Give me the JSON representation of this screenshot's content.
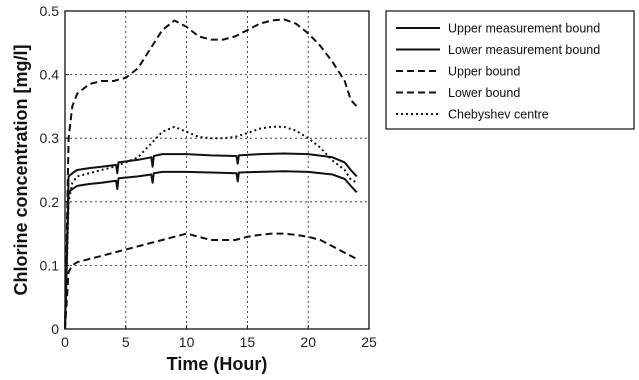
{
  "chart_data": {
    "type": "line",
    "xlabel": "Time   (Hour)",
    "ylabel": "Chlorine concentration [mg/l]",
    "xlim": [
      0,
      25
    ],
    "ylim": [
      0,
      0.5
    ],
    "xticks": [
      "0",
      "5",
      "10",
      "15",
      "20",
      "25"
    ],
    "yticks": [
      "0",
      "0.1",
      "0.2",
      "0.3",
      "0.4",
      "0.5"
    ],
    "grid": true,
    "legend_position": "outside-right",
    "series": [
      {
        "name": "Upper measurement bound",
        "style": "solid",
        "x": [
          0,
          0.3,
          0.6,
          1,
          2,
          3,
          4.2,
          4.3,
          4.4,
          6,
          7.1,
          7.2,
          7.3,
          8,
          10,
          12,
          14.1,
          14.2,
          14.3,
          16,
          18,
          20,
          22,
          23,
          23.5,
          24
        ],
        "y": [
          0,
          0.24,
          0.245,
          0.25,
          0.253,
          0.255,
          0.258,
          0.245,
          0.262,
          0.266,
          0.27,
          0.255,
          0.272,
          0.275,
          0.275,
          0.273,
          0.272,
          0.26,
          0.273,
          0.275,
          0.276,
          0.275,
          0.27,
          0.262,
          0.25,
          0.24
        ]
      },
      {
        "name": "Lower measurement bound",
        "style": "solid",
        "x": [
          0,
          0.3,
          0.6,
          1,
          2,
          3,
          4.2,
          4.3,
          4.4,
          6,
          7.1,
          7.2,
          7.3,
          8,
          10,
          12,
          14.1,
          14.2,
          14.3,
          16,
          18,
          20,
          22,
          23,
          23.5,
          24
        ],
        "y": [
          0,
          0.215,
          0.22,
          0.225,
          0.228,
          0.23,
          0.233,
          0.22,
          0.237,
          0.24,
          0.243,
          0.23,
          0.245,
          0.247,
          0.247,
          0.246,
          0.245,
          0.232,
          0.246,
          0.247,
          0.248,
          0.247,
          0.243,
          0.236,
          0.225,
          0.215
        ]
      },
      {
        "name": "Upper bound",
        "style": "dashed",
        "x": [
          0,
          0.3,
          0.6,
          1,
          2,
          3,
          4,
          5,
          6,
          7,
          8,
          9,
          10,
          11,
          12,
          13,
          14,
          15,
          16,
          17,
          18,
          19,
          20,
          21,
          22,
          23,
          23.5,
          24
        ],
        "y": [
          0,
          0.3,
          0.35,
          0.37,
          0.385,
          0.39,
          0.39,
          0.395,
          0.41,
          0.44,
          0.47,
          0.485,
          0.475,
          0.46,
          0.455,
          0.455,
          0.46,
          0.47,
          0.48,
          0.485,
          0.487,
          0.48,
          0.465,
          0.445,
          0.42,
          0.39,
          0.36,
          0.35
        ]
      },
      {
        "name": "Lower bound",
        "style": "dashed",
        "x": [
          0,
          0.3,
          0.6,
          1,
          2,
          3,
          4,
          5,
          6,
          7,
          8,
          9,
          10,
          11,
          12,
          13,
          14,
          15,
          16,
          17,
          18,
          19,
          20,
          21,
          22,
          23,
          23.5,
          24
        ],
        "y": [
          0,
          0.09,
          0.1,
          0.105,
          0.11,
          0.115,
          0.12,
          0.125,
          0.13,
          0.135,
          0.14,
          0.145,
          0.15,
          0.145,
          0.14,
          0.14,
          0.14,
          0.145,
          0.148,
          0.15,
          0.15,
          0.148,
          0.145,
          0.14,
          0.13,
          0.12,
          0.115,
          0.11
        ]
      },
      {
        "name": "Chebyshev centre",
        "style": "dotted",
        "x": [
          0,
          0.3,
          0.6,
          1,
          2,
          3,
          4,
          5,
          6,
          7,
          8,
          9,
          10,
          11,
          12,
          13,
          14,
          15,
          16,
          17,
          18,
          19,
          20,
          21,
          22,
          23,
          23.5,
          24
        ],
        "y": [
          0,
          0.2,
          0.23,
          0.24,
          0.245,
          0.25,
          0.255,
          0.262,
          0.27,
          0.29,
          0.31,
          0.318,
          0.31,
          0.302,
          0.3,
          0.3,
          0.302,
          0.308,
          0.315,
          0.318,
          0.318,
          0.312,
          0.3,
          0.285,
          0.265,
          0.25,
          0.235,
          0.23
        ]
      }
    ]
  }
}
